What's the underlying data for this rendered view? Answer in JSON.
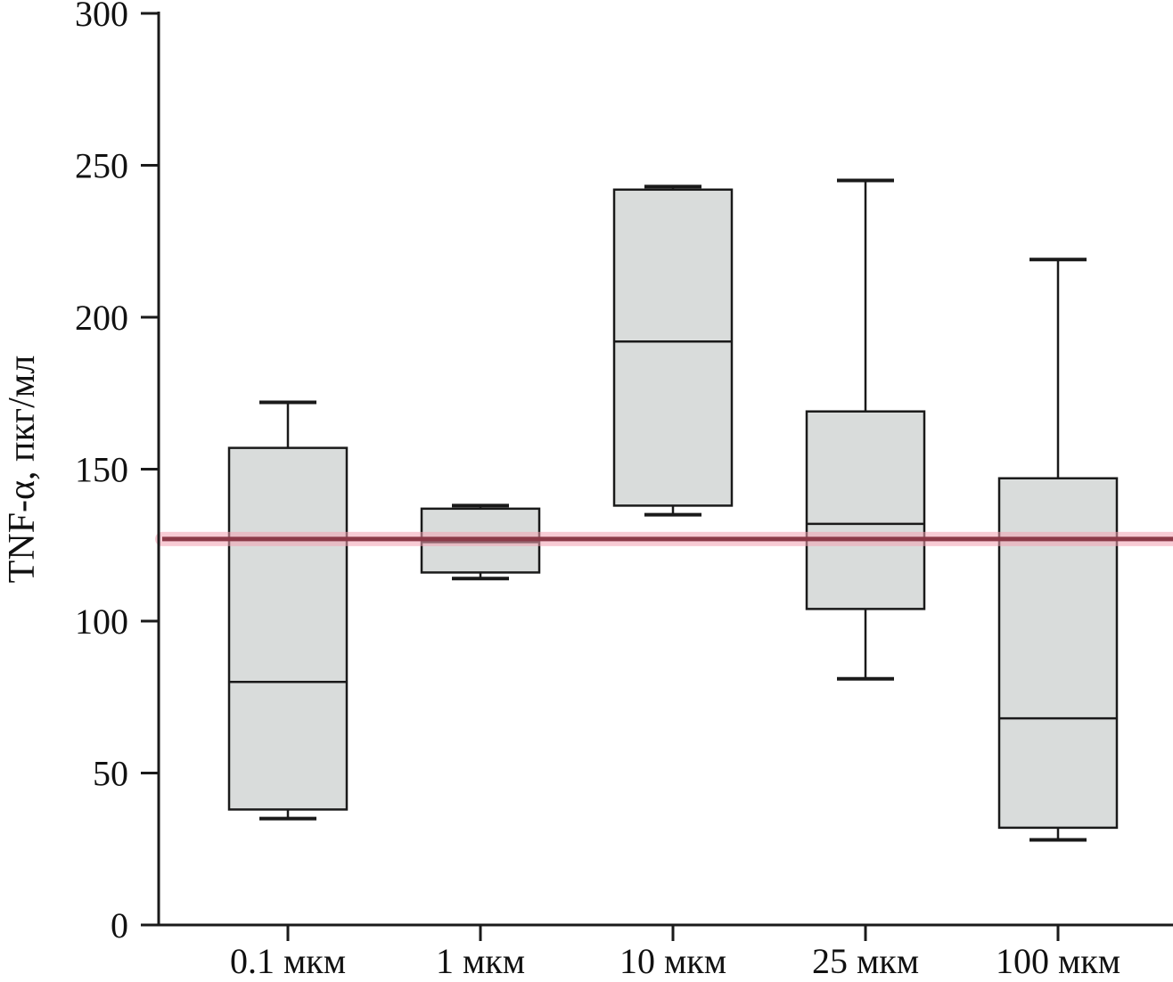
{
  "chart_data": {
    "type": "box",
    "title": "",
    "xlabel": "",
    "ylabel": "TNF-α, пкг/мл",
    "ylim": [
      0,
      300
    ],
    "yticks": [
      0,
      50,
      100,
      150,
      200,
      250,
      300
    ],
    "grid": false,
    "legend": null,
    "categories": [
      "0.1 мкм",
      "1 мкм",
      "10 мкм",
      "25 мкм",
      "100 мкм"
    ],
    "boxes": [
      {
        "category": "0.1 мкм",
        "whisker_low": 35,
        "q1": 38,
        "median": 80,
        "q3": 157,
        "whisker_high": 172
      },
      {
        "category": "1 мкм",
        "whisker_low": 114,
        "q1": 116,
        "median": 126,
        "q3": 137,
        "whisker_high": 138
      },
      {
        "category": "10 мкм",
        "whisker_low": 135,
        "q1": 138,
        "median": 192,
        "q3": 242,
        "whisker_high": 243
      },
      {
        "category": "25 мкм",
        "whisker_low": 81,
        "q1": 104,
        "median": 132,
        "q3": 169,
        "whisker_high": 245
      },
      {
        "category": "100 мкм",
        "whisker_low": 28,
        "q1": 32,
        "median": 68,
        "q3": 147,
        "whisker_high": 219
      }
    ],
    "reference_line": {
      "value": 127,
      "color": "#8c3a48",
      "glow_color": "#f4a2b2"
    },
    "colors": {
      "box_fill": "#d9dcdb",
      "box_stroke": "#1a1a1a",
      "axis": "#1a1a1a"
    }
  }
}
